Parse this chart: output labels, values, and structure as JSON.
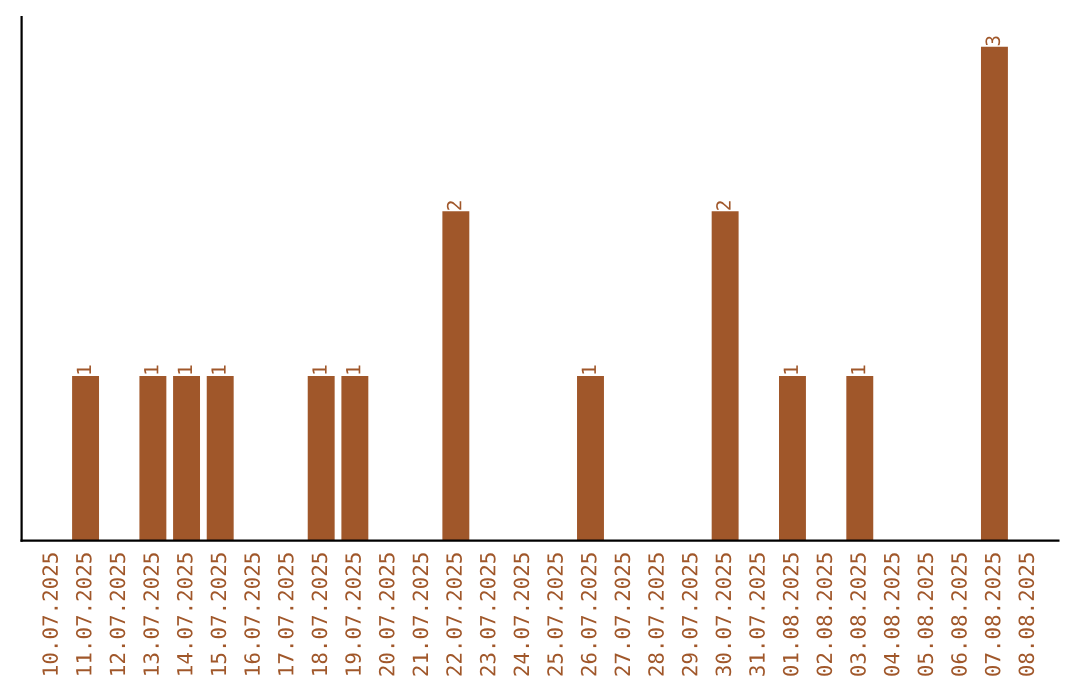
{
  "chart_data": {
    "type": "bar",
    "categories": [
      "10.07.2025",
      "11.07.2025",
      "12.07.2025",
      "13.07.2025",
      "14.07.2025",
      "15.07.2025",
      "16.07.2025",
      "17.07.2025",
      "18.07.2025",
      "19.07.2025",
      "20.07.2025",
      "21.07.2025",
      "22.07.2025",
      "23.07.2025",
      "24.07.2025",
      "25.07.2025",
      "26.07.2025",
      "27.07.2025",
      "28.07.2025",
      "29.07.2025",
      "30.07.2025",
      "31.07.2025",
      "01.08.2025",
      "02.08.2025",
      "03.08.2025",
      "04.08.2025",
      "05.08.2025",
      "06.08.2025",
      "07.08.2025",
      "08.08.2025"
    ],
    "values": [
      0,
      1,
      0,
      1,
      1,
      1,
      0,
      0,
      1,
      1,
      0,
      0,
      2,
      0,
      0,
      0,
      1,
      0,
      0,
      0,
      2,
      0,
      1,
      0,
      1,
      0,
      0,
      0,
      3,
      0
    ],
    "value_labels": [
      null,
      "1",
      null,
      "1",
      "1",
      "1",
      null,
      null,
      "1",
      "1",
      null,
      null,
      "2",
      null,
      null,
      null,
      "1",
      null,
      null,
      null,
      "2",
      null,
      "1",
      null,
      "1",
      null,
      null,
      null,
      "3",
      null
    ],
    "color": "#a0572a",
    "tick_labels": "x",
    "grid": false
  }
}
